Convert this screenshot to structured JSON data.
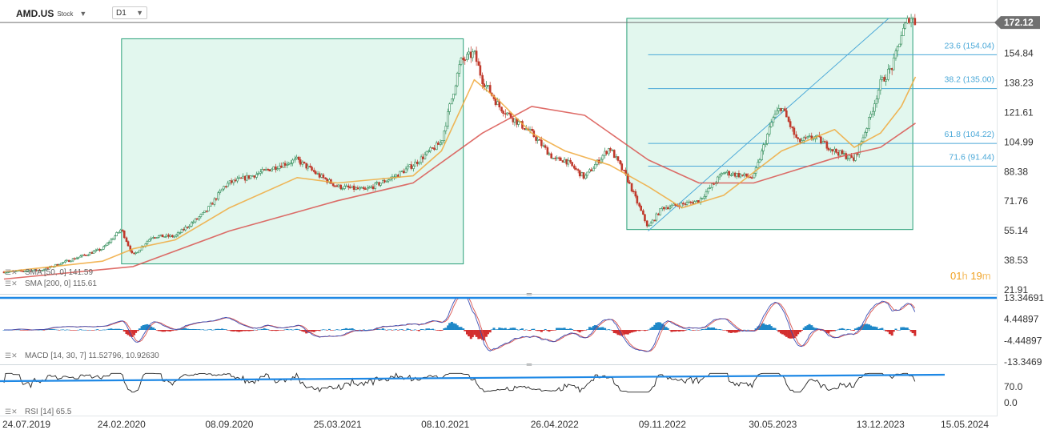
{
  "symbol": "AMD.US",
  "instrument_type": "Stock",
  "timeframe": "D1",
  "countdown": {
    "hours": "01",
    "h": "h",
    "minutes": "19",
    "m": "m"
  },
  "colors": {
    "candle_up": "#2e8b57",
    "candle_down": "#c0392b",
    "sma50": "#f0a93c",
    "sma200": "#d9534f",
    "fib": "#4aa8d8",
    "box_fill": "#e2f7ee",
    "box_stroke": "#2aa079",
    "macd_pos": "#1e88c8",
    "macd_neg": "#d32f2f",
    "hline": "#1e88e5"
  },
  "chart_data": [
    {
      "type": "candlestick",
      "title": "",
      "x_tick_labels": [
        "24.07.2019",
        "24.02.2020",
        "08.09.2020",
        "25.03.2021",
        "08.10.2021",
        "26.04.2022",
        "09.11.2022",
        "30.05.2023",
        "13.12.2023",
        "15.05.2024"
      ],
      "x_date_range": [
        "2019-07-24",
        "2024-05-15"
      ],
      "y_tick_labels": [
        "154.84",
        "138.23",
        "121.61",
        "104.99",
        "88.38",
        "71.76",
        "55.14",
        "38.53",
        "21.91"
      ],
      "ylim": [
        21.91,
        174.0
      ],
      "current_price": 172.12,
      "series": [
        {
          "name": "price",
          "dates": [
            "2019-07-24",
            "2019-10-01",
            "2020-01-20",
            "2020-02-24",
            "2020-03-16",
            "2020-04-20",
            "2020-06-01",
            "2020-07-28",
            "2020-08-30",
            "2020-09-08",
            "2020-10-20",
            "2020-12-10",
            "2021-01-10",
            "2021-02-20",
            "2021-03-25",
            "2021-05-15",
            "2021-07-10",
            "2021-08-10",
            "2021-10-01",
            "2021-11-05",
            "2021-11-30",
            "2021-12-15",
            "2022-01-15",
            "2022-02-10",
            "2022-03-15",
            "2022-04-26",
            "2022-05-15",
            "2022-06-20",
            "2022-08-05",
            "2022-09-05",
            "2022-10-14",
            "2022-11-09",
            "2022-12-15",
            "2023-01-15",
            "2023-03-01",
            "2023-04-25",
            "2023-05-30",
            "2023-06-15",
            "2023-07-15",
            "2023-08-15",
            "2023-09-20",
            "2023-10-26",
            "2023-11-20",
            "2023-12-13",
            "2024-01-05",
            "2024-01-20",
            "2024-02-05",
            "2024-02-15"
          ],
          "values": [
            32,
            33,
            45,
            56,
            41,
            52,
            52,
            66,
            80,
            82,
            86,
            92,
            95,
            86,
            80,
            78,
            86,
            92,
            105,
            150,
            155,
            140,
            125,
            118,
            110,
            95,
            95,
            85,
            102,
            85,
            57,
            68,
            70,
            72,
            88,
            85,
            118,
            125,
            105,
            108,
            100,
            95,
            115,
            138,
            148,
            165,
            176,
            172
          ]
        },
        {
          "name": "SMA 50",
          "dates": [
            "2019-07-24",
            "2020-01-20",
            "2020-03-16",
            "2020-06-01",
            "2020-09-08",
            "2021-01-10",
            "2021-03-25",
            "2021-08-10",
            "2021-10-01",
            "2021-11-30",
            "2022-01-15",
            "2022-03-15",
            "2022-05-15",
            "2022-08-05",
            "2022-10-14",
            "2022-12-15",
            "2023-03-01",
            "2023-06-15",
            "2023-09-20",
            "2023-10-26",
            "2023-12-13",
            "2024-01-20",
            "2024-02-15"
          ],
          "values": [
            32,
            38,
            45,
            50,
            68,
            85,
            82,
            86,
            100,
            140,
            128,
            110,
            100,
            92,
            80,
            68,
            75,
            100,
            112,
            102,
            110,
            125,
            141.59
          ]
        },
        {
          "name": "SMA 200",
          "dates": [
            "2019-07-24",
            "2020-03-16",
            "2020-09-08",
            "2021-03-25",
            "2021-08-10",
            "2021-12-15",
            "2022-03-15",
            "2022-06-20",
            "2022-10-14",
            "2023-01-15",
            "2023-04-25",
            "2023-09-20",
            "2023-12-13",
            "2024-02-15"
          ],
          "values": [
            28,
            35,
            55,
            72,
            82,
            110,
            125,
            120,
            95,
            82,
            82,
            96,
            102,
            115.61
          ]
        }
      ],
      "annotations": [
        {
          "type": "rectangle",
          "from_date": "2020-02-24",
          "to_date": "2021-11-10",
          "y_range": [
            36.5,
            163
          ]
        },
        {
          "type": "rectangle",
          "from_date": "2022-09-05",
          "to_date": "2024-02-10",
          "y_range": [
            55.8,
            174.5
          ]
        },
        {
          "type": "trendline",
          "from": [
            "2022-10-14",
            55.0
          ],
          "to": [
            "2023-12-28",
            174.5
          ]
        },
        {
          "type": "fibonacci",
          "levels": [
            {
              "label": "23.6 (154.04)",
              "value": 154.04
            },
            {
              "label": "38.2 (135.00)",
              "value": 135.0
            },
            {
              "label": "61.8 (104.22)",
              "value": 104.22
            },
            {
              "label": "71.6 (91.44)",
              "value": 91.44
            }
          ]
        }
      ]
    },
    {
      "type": "macd",
      "legend": "MACD [14, 30, 7] 11.52796,  10.92630",
      "params": [
        14,
        30,
        7
      ],
      "macd": 11.52796,
      "signal": 10.9263,
      "y_tick_labels": [
        "13.34691",
        "4.44897",
        "-4.44897",
        "-13.3469"
      ],
      "ylim": [
        -13.3469,
        13.34691
      ],
      "hline": 13.34691
    },
    {
      "type": "rsi",
      "legend": "RSI [14] 65.5",
      "period": 14,
      "value": 65.5,
      "y_tick_labels": [
        "70.0",
        "0.0"
      ],
      "hline": 50
    }
  ],
  "legends": {
    "sma50": "SMA [50, 0] 141.59",
    "sma200": "SMA [200, 0] 115.61"
  }
}
